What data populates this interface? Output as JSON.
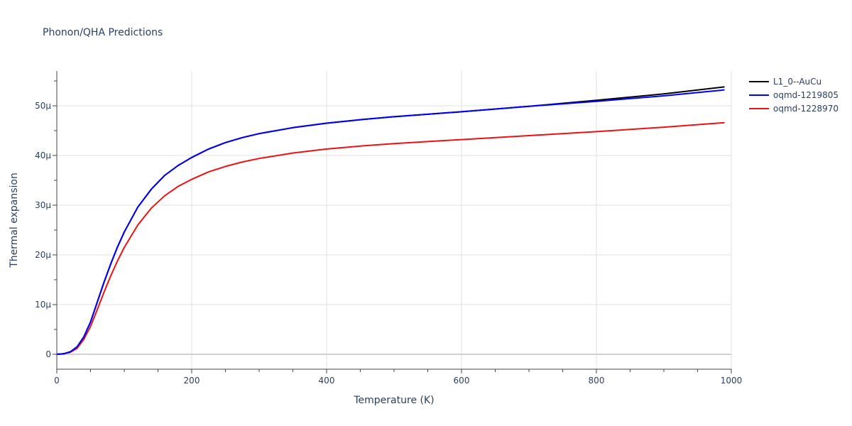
{
  "chart_data": {
    "type": "line",
    "title": "Phonon/QHA Predictions",
    "xlabel": "Temperature (K)",
    "ylabel": "Thermal expansion",
    "xlim": [
      0,
      1000
    ],
    "ylim": [
      -3,
      57
    ],
    "xticks": [
      0,
      200,
      400,
      600,
      800,
      1000
    ],
    "xtick_labels": [
      "0",
      "200",
      "400",
      "600",
      "800",
      "1000"
    ],
    "yticks": [
      0,
      10,
      20,
      30,
      40,
      50
    ],
    "ytick_labels": [
      "0",
      "10μ",
      "20μ",
      "30μ",
      "40μ",
      "50μ"
    ],
    "grid": true,
    "legend_position": "top-right",
    "series": [
      {
        "name": "L1_0--AuCu",
        "color": "#000000",
        "x": [
          0,
          10,
          20,
          30,
          40,
          50,
          60,
          70,
          80,
          90,
          100,
          120,
          140,
          160,
          180,
          200,
          225,
          250,
          275,
          300,
          350,
          400,
          450,
          500,
          550,
          600,
          700,
          800,
          900,
          990
        ],
        "y": [
          0,
          0.1,
          0.5,
          1.5,
          3.5,
          6.5,
          10.5,
          14.5,
          18.2,
          21.6,
          24.6,
          29.6,
          33.2,
          36.0,
          38.0,
          39.6,
          41.3,
          42.6,
          43.6,
          44.4,
          45.6,
          46.5,
          47.2,
          47.8,
          48.3,
          48.8,
          49.9,
          51.1,
          52.4,
          53.8
        ]
      },
      {
        "name": "oqmd-1219805",
        "color": "#0000ff",
        "x": [
          0,
          10,
          20,
          30,
          40,
          50,
          60,
          70,
          80,
          90,
          100,
          120,
          140,
          160,
          180,
          200,
          225,
          250,
          275,
          300,
          350,
          400,
          450,
          500,
          550,
          600,
          700,
          800,
          900,
          990
        ],
        "y": [
          0,
          0.1,
          0.5,
          1.5,
          3.5,
          6.5,
          10.5,
          14.5,
          18.2,
          21.6,
          24.6,
          29.6,
          33.2,
          36.0,
          38.0,
          39.6,
          41.3,
          42.6,
          43.6,
          44.4,
          45.6,
          46.5,
          47.2,
          47.8,
          48.3,
          48.8,
          49.9,
          50.9,
          52.0,
          53.2
        ]
      },
      {
        "name": "oqmd-1228970",
        "color": "#ee1111",
        "x": [
          0,
          10,
          20,
          30,
          40,
          50,
          60,
          70,
          80,
          90,
          100,
          120,
          140,
          160,
          180,
          200,
          225,
          250,
          275,
          300,
          350,
          400,
          450,
          500,
          550,
          600,
          700,
          800,
          900,
          990
        ],
        "y": [
          0,
          0.1,
          0.4,
          1.2,
          3.0,
          5.6,
          9.0,
          12.5,
          15.8,
          18.8,
          21.5,
          26.0,
          29.4,
          31.9,
          33.8,
          35.2,
          36.7,
          37.8,
          38.7,
          39.4,
          40.5,
          41.3,
          41.9,
          42.4,
          42.8,
          43.2,
          44.0,
          44.8,
          45.7,
          46.6
        ]
      }
    ]
  }
}
